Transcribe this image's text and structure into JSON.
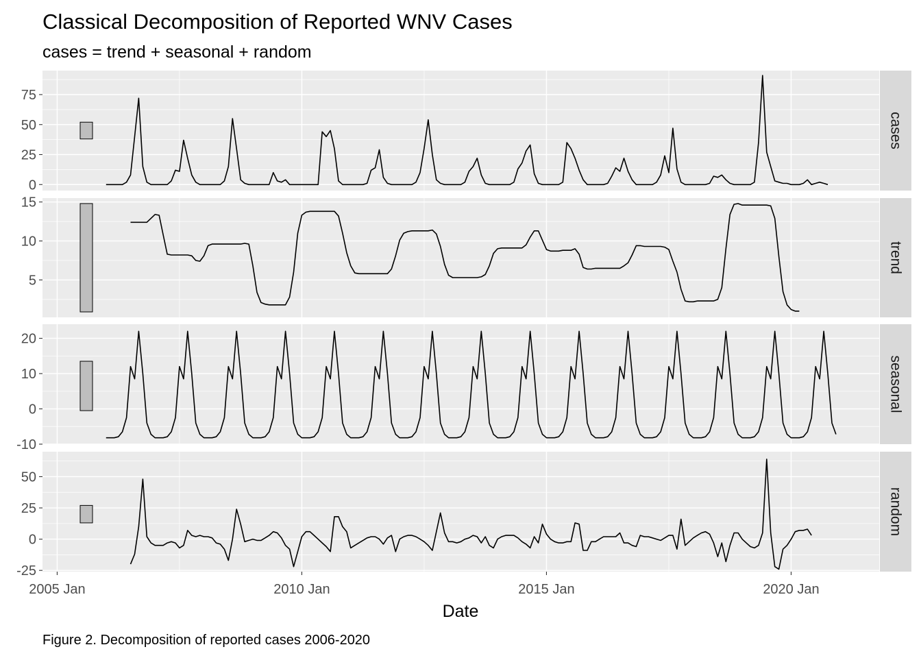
{
  "chart_data": {
    "type": "line",
    "title": "Classical Decomposition of Reported WNV Cases",
    "subtitle": "cases = trend + seasonal + random",
    "xlabel": "Date",
    "caption": "Figure 2. Decomposition of reported cases 2006-2020",
    "x_axis": {
      "ticks": [
        "2005 Jan",
        "2010 Jan",
        "2015 Jan",
        "2020 Jan"
      ],
      "tick_values": [
        2005.0,
        2010.0,
        2015.0,
        2020.0
      ],
      "range": [
        2004.7,
        2021.8
      ]
    },
    "x": [
      2006.0,
      2006.0833,
      2006.1667,
      2006.25,
      2006.3333,
      2006.4167,
      2006.5,
      2006.5833,
      2006.6667,
      2006.75,
      2006.8333,
      2006.9167,
      2007.0,
      2007.0833,
      2007.1667,
      2007.25,
      2007.3333,
      2007.4167,
      2007.5,
      2007.5833,
      2007.6667,
      2007.75,
      2007.8333,
      2007.9167,
      2008.0,
      2008.0833,
      2008.1667,
      2008.25,
      2008.3333,
      2008.4167,
      2008.5,
      2008.5833,
      2008.6667,
      2008.75,
      2008.8333,
      2008.9167,
      2009.0,
      2009.0833,
      2009.1667,
      2009.25,
      2009.3333,
      2009.4167,
      2009.5,
      2009.5833,
      2009.6667,
      2009.75,
      2009.8333,
      2009.9167,
      2010.0,
      2010.0833,
      2010.1667,
      2010.25,
      2010.3333,
      2010.4167,
      2010.5,
      2010.5833,
      2010.6667,
      2010.75,
      2010.8333,
      2010.9167,
      2011.0,
      2011.0833,
      2011.1667,
      2011.25,
      2011.3333,
      2011.4167,
      2011.5,
      2011.5833,
      2011.6667,
      2011.75,
      2011.8333,
      2011.9167,
      2012.0,
      2012.0833,
      2012.1667,
      2012.25,
      2012.3333,
      2012.4167,
      2012.5,
      2012.5833,
      2012.6667,
      2012.75,
      2012.8333,
      2012.9167,
      2013.0,
      2013.0833,
      2013.1667,
      2013.25,
      2013.3333,
      2013.4167,
      2013.5,
      2013.5833,
      2013.6667,
      2013.75,
      2013.8333,
      2013.9167,
      2014.0,
      2014.0833,
      2014.1667,
      2014.25,
      2014.3333,
      2014.4167,
      2014.5,
      2014.5833,
      2014.6667,
      2014.75,
      2014.8333,
      2014.9167,
      2015.0,
      2015.0833,
      2015.1667,
      2015.25,
      2015.3333,
      2015.4167,
      2015.5,
      2015.5833,
      2015.6667,
      2015.75,
      2015.8333,
      2015.9167,
      2016.0,
      2016.0833,
      2016.1667,
      2016.25,
      2016.3333,
      2016.4167,
      2016.5,
      2016.5833,
      2016.6667,
      2016.75,
      2016.8333,
      2016.9167,
      2017.0,
      2017.0833,
      2017.1667,
      2017.25,
      2017.3333,
      2017.4167,
      2017.5,
      2017.5833,
      2017.6667,
      2017.75,
      2017.8333,
      2017.9167,
      2018.0,
      2018.0833,
      2018.1667,
      2018.25,
      2018.3333,
      2018.4167,
      2018.5,
      2018.5833,
      2018.6667,
      2018.75,
      2018.8333,
      2018.9167,
      2019.0,
      2019.0833,
      2019.1667,
      2019.25,
      2019.3333,
      2019.4167,
      2019.5,
      2019.5833,
      2019.6667,
      2019.75,
      2019.8333,
      2019.9167,
      2020.0,
      2020.0833,
      2020.1667,
      2020.25,
      2020.3333,
      2020.4167,
      2020.5,
      2020.5833,
      2020.6667,
      2020.75,
      2020.8333,
      2020.9167
    ],
    "panels": [
      {
        "label": "cases",
        "yticks": [
          0,
          25,
          50,
          75
        ],
        "ylim": [
          -5,
          95
        ],
        "scale_bar": [
          38,
          52
        ],
        "values": [
          0,
          0,
          0,
          0,
          0,
          2,
          8,
          40,
          72,
          15,
          2,
          0,
          0,
          0,
          0,
          0,
          3,
          12,
          11,
          37,
          22,
          8,
          2,
          0,
          0,
          0,
          0,
          0,
          0,
          3,
          15,
          55,
          30,
          4,
          1,
          0,
          0,
          0,
          0,
          0,
          0,
          10,
          3,
          2,
          4,
          0,
          0,
          0,
          0,
          0,
          0,
          0,
          0,
          44,
          40,
          45,
          30,
          3,
          0,
          0,
          0,
          0,
          0,
          0,
          1,
          12,
          14,
          29,
          6,
          1,
          0,
          0,
          0,
          0,
          0,
          0,
          2,
          10,
          30,
          54,
          25,
          4,
          1,
          0,
          0,
          0,
          0,
          0,
          2,
          11,
          15,
          22,
          8,
          1,
          0,
          0,
          0,
          0,
          0,
          0,
          2,
          13,
          18,
          28,
          33,
          9,
          1,
          0,
          0,
          0,
          0,
          0,
          2,
          35,
          30,
          22,
          12,
          4,
          0,
          0,
          0,
          0,
          0,
          1,
          7,
          14,
          11,
          22,
          11,
          4,
          0,
          0,
          0,
          0,
          0,
          2,
          8,
          24,
          10,
          47,
          13,
          2,
          0,
          0,
          0,
          0,
          0,
          0,
          1,
          7,
          6,
          8,
          4,
          1,
          0,
          0,
          0,
          0,
          0,
          2,
          35,
          91,
          27,
          15,
          3,
          2,
          1,
          1,
          0,
          0,
          0,
          1,
          4,
          0,
          1,
          2,
          1,
          0
        ]
      },
      {
        "label": "trend",
        "yticks": [
          5,
          10,
          15
        ],
        "ylim": [
          0.2,
          15.5
        ],
        "scale_bar": [
          0.9,
          14.8
        ],
        "values": [
          null,
          null,
          null,
          null,
          null,
          null,
          12.4,
          12.4,
          12.4,
          12.4,
          12.4,
          12.9,
          13.4,
          13.3,
          10.8,
          8.3,
          8.2,
          8.2,
          8.2,
          8.2,
          8.2,
          8.1,
          7.5,
          7.4,
          8.1,
          9.4,
          9.6,
          9.6,
          9.6,
          9.6,
          9.6,
          9.6,
          9.6,
          9.6,
          9.7,
          9.6,
          6.8,
          3.4,
          2.1,
          1.9,
          1.8,
          1.8,
          1.8,
          1.8,
          1.8,
          2.8,
          6.0,
          11.0,
          13.3,
          13.7,
          13.8,
          13.8,
          13.8,
          13.8,
          13.8,
          13.8,
          13.8,
          13.2,
          11.0,
          8.5,
          6.8,
          5.9,
          5.8,
          5.8,
          5.8,
          5.8,
          5.8,
          5.8,
          5.8,
          5.8,
          6.4,
          8.1,
          10.1,
          11.0,
          11.2,
          11.3,
          11.3,
          11.3,
          11.3,
          11.3,
          11.4,
          10.9,
          9.3,
          7.0,
          5.6,
          5.3,
          5.3,
          5.3,
          5.3,
          5.3,
          5.3,
          5.3,
          5.4,
          5.7,
          6.8,
          8.4,
          9.0,
          9.1,
          9.1,
          9.1,
          9.1,
          9.1,
          9.1,
          9.5,
          10.5,
          11.3,
          11.3,
          10.1,
          8.9,
          8.7,
          8.7,
          8.7,
          8.8,
          8.8,
          8.8,
          9.0,
          8.3,
          6.6,
          6.4,
          6.4,
          6.5,
          6.5,
          6.5,
          6.5,
          6.5,
          6.5,
          6.5,
          6.8,
          7.2,
          8.2,
          9.4,
          9.4,
          9.3,
          9.3,
          9.3,
          9.3,
          9.3,
          9.2,
          8.9,
          7.4,
          6.0,
          3.8,
          2.3,
          2.2,
          2.2,
          2.3,
          2.3,
          2.3,
          2.3,
          2.3,
          2.5,
          4.0,
          9.0,
          13.4,
          14.7,
          14.8,
          14.6,
          14.6,
          14.6,
          14.6,
          14.6,
          14.6,
          14.6,
          14.5,
          12.9,
          8.0,
          3.5,
          1.8,
          1.2,
          1.0,
          1.0,
          null,
          null,
          null,
          null,
          null,
          null
        ]
      },
      {
        "label": "seasonal",
        "yticks": [
          -10,
          0,
          10,
          20
        ],
        "ylim": [
          -10,
          24
        ],
        "scale_bar": [
          -0.5,
          13.5
        ],
        "values": [
          -8.2,
          -8.2,
          -8.2,
          -7.9,
          -6.5,
          -2.5,
          12.0,
          8.5,
          22.0,
          10.0,
          -4.0,
          -7.2,
          -8.2,
          -8.2,
          -8.2,
          -7.9,
          -6.5,
          -2.5,
          12.0,
          8.5,
          22.0,
          10.0,
          -4.0,
          -7.2,
          -8.2,
          -8.2,
          -8.2,
          -7.9,
          -6.5,
          -2.5,
          12.0,
          8.5,
          22.0,
          10.0,
          -4.0,
          -7.2,
          -8.2,
          -8.2,
          -8.2,
          -7.9,
          -6.5,
          -2.5,
          12.0,
          8.5,
          22.0,
          10.0,
          -4.0,
          -7.2,
          -8.2,
          -8.2,
          -8.2,
          -7.9,
          -6.5,
          -2.5,
          12.0,
          8.5,
          22.0,
          10.0,
          -4.0,
          -7.2,
          -8.2,
          -8.2,
          -8.2,
          -7.9,
          -6.5,
          -2.5,
          12.0,
          8.5,
          22.0,
          10.0,
          -4.0,
          -7.2,
          -8.2,
          -8.2,
          -8.2,
          -7.9,
          -6.5,
          -2.5,
          12.0,
          8.5,
          22.0,
          10.0,
          -4.0,
          -7.2,
          -8.2,
          -8.2,
          -8.2,
          -7.9,
          -6.5,
          -2.5,
          12.0,
          8.5,
          22.0,
          10.0,
          -4.0,
          -7.2,
          -8.2,
          -8.2,
          -8.2,
          -7.9,
          -6.5,
          -2.5,
          12.0,
          8.5,
          22.0,
          10.0,
          -4.0,
          -7.2,
          -8.2,
          -8.2,
          -8.2,
          -7.9,
          -6.5,
          -2.5,
          12.0,
          8.5,
          22.0,
          10.0,
          -4.0,
          -7.2,
          -8.2,
          -8.2,
          -8.2,
          -7.9,
          -6.5,
          -2.5,
          12.0,
          8.5,
          22.0,
          10.0,
          -4.0,
          -7.2,
          -8.2,
          -8.2,
          -8.2,
          -7.9,
          -6.5,
          -2.5,
          12.0,
          8.5,
          22.0,
          10.0,
          -4.0,
          -7.2,
          -8.2,
          -8.2,
          -8.2,
          -7.9,
          -6.5,
          -2.5,
          12.0,
          8.5,
          22.0,
          10.0,
          -4.0,
          -7.2,
          -8.2,
          -8.2,
          -8.2,
          -7.9,
          -6.5,
          -2.5,
          12.0,
          8.5,
          22.0,
          10.0,
          -4.0,
          -7.2,
          -8.2,
          -8.2,
          -8.2,
          -7.9,
          -6.5,
          -2.5,
          12.0,
          8.5,
          22.0,
          10.0,
          -4.0,
          -7.2
        ]
      },
      {
        "label": "random",
        "yticks": [
          -25,
          0,
          25,
          50
        ],
        "ylim": [
          -26,
          70
        ],
        "scale_bar": [
          13,
          27
        ],
        "values": [
          null,
          null,
          null,
          null,
          null,
          null,
          -20,
          -12,
          10,
          48,
          2,
          -3,
          -5,
          -5,
          -5,
          -3,
          -2,
          -3,
          -7,
          -5,
          7,
          3,
          2,
          3,
          2,
          2,
          1,
          -3,
          -4,
          -8,
          -17,
          0,
          24,
          12,
          -2,
          -1,
          0,
          -1,
          -1,
          1,
          3,
          6,
          5,
          1,
          -5,
          -8,
          -22,
          -10,
          2,
          6,
          6,
          3,
          0,
          -3,
          -6,
          -10,
          18,
          18,
          10,
          6,
          -7,
          -5,
          -3,
          -1,
          1,
          2,
          2,
          0,
          -4,
          1,
          3,
          -10,
          0,
          2,
          3,
          3,
          2,
          0,
          -2,
          -5,
          -9,
          6,
          21,
          5,
          -2,
          -2,
          -3,
          -2,
          0,
          1,
          3,
          2,
          -3,
          2,
          -5,
          -7,
          0,
          2,
          3,
          3,
          3,
          1,
          -2,
          -4,
          -7,
          2,
          -3,
          12,
          4,
          0,
          -2,
          -3,
          -3,
          -2,
          -2,
          13,
          12,
          -9,
          -9,
          -2,
          -2,
          0,
          2,
          2,
          2,
          2,
          5,
          -3,
          -3,
          -5,
          -6,
          3,
          2,
          2,
          1,
          0,
          -1,
          1,
          3,
          3,
          -8,
          16,
          -5,
          -2,
          1,
          3,
          5,
          6,
          4,
          -3,
          -14,
          -3,
          -18,
          -5,
          5,
          5,
          0,
          -3,
          -6,
          -7,
          -5,
          5,
          64,
          5,
          -22,
          -24,
          -8,
          -5,
          0,
          6,
          7,
          7,
          8,
          3,
          null,
          null,
          null,
          null,
          null,
          null
        ]
      }
    ]
  }
}
